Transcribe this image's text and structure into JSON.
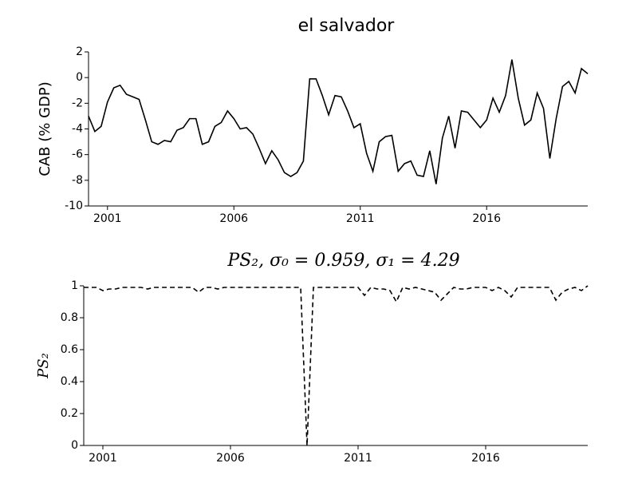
{
  "chart_data": [
    {
      "type": "line",
      "title": "el salvador",
      "ylabel": "CAB (% GDP)",
      "x": [
        2000.25,
        2000.5,
        2000.75,
        2001,
        2001.25,
        2001.5,
        2001.75,
        2002,
        2002.25,
        2002.5,
        2002.75,
        2003,
        2003.25,
        2003.5,
        2003.75,
        2004,
        2004.25,
        2004.5,
        2004.75,
        2005,
        2005.25,
        2005.5,
        2005.75,
        2006,
        2006.25,
        2006.5,
        2006.75,
        2007,
        2007.25,
        2007.5,
        2007.75,
        2008,
        2008.25,
        2008.5,
        2008.75,
        2009,
        2009.25,
        2009.5,
        2009.75,
        2010,
        2010.25,
        2010.5,
        2010.75,
        2011,
        2011.25,
        2011.5,
        2011.75,
        2012,
        2012.25,
        2012.5,
        2012.75,
        2013,
        2013.25,
        2013.5,
        2013.75,
        2014,
        2014.25,
        2014.5,
        2014.75,
        2015,
        2015.25,
        2015.5,
        2015.75,
        2016,
        2016.25,
        2016.5,
        2016.75,
        2017,
        2017.25,
        2017.5,
        2017.75,
        2018,
        2018.25,
        2018.5,
        2018.75,
        2019,
        2019.25,
        2019.5,
        2019.75,
        2020
      ],
      "values": [
        -3.0,
        -4.2,
        -3.8,
        -1.9,
        -0.8,
        -0.6,
        -1.3,
        -1.5,
        -1.7,
        -3.3,
        -5.0,
        -5.2,
        -4.9,
        -5.0,
        -4.1,
        -3.9,
        -3.2,
        -3.2,
        -5.2,
        -5.0,
        -3.8,
        -3.5,
        -2.6,
        -3.2,
        -4.0,
        -3.9,
        -4.4,
        -5.5,
        -6.7,
        -5.7,
        -6.4,
        -7.4,
        -7.7,
        -7.4,
        -6.5,
        -0.1,
        -0.1,
        -1.4,
        -2.9,
        -1.4,
        -1.5,
        -2.6,
        -3.9,
        -3.6,
        -5.9,
        -7.3,
        -5.0,
        -4.6,
        -4.5,
        -7.3,
        -6.7,
        -6.5,
        -7.6,
        -7.7,
        -5.7,
        -8.3,
        -4.7,
        -3.0,
        -5.5,
        -2.6,
        -2.7,
        -3.3,
        -3.9,
        -3.3,
        -1.6,
        -2.7,
        -1.4,
        1.4,
        -1.6,
        -3.7,
        -3.3,
        -1.2,
        -2.4,
        -6.3,
        -3.2,
        -0.7,
        -0.3,
        -1.2,
        0.7,
        0.3
      ],
      "color": "#000000",
      "linestyle": "solid",
      "xlim": [
        2000.25,
        2020.0
      ],
      "xticks": [
        2001,
        2006,
        2011,
        2016
      ],
      "ylim": [
        -10,
        2
      ],
      "yticks": [
        -10,
        -8,
        -6,
        -4,
        -2,
        0,
        2
      ]
    },
    {
      "type": "line",
      "title": "PS₂, σ₀ = 0.959, σ₁ = 4.29",
      "ylabel": "PS₂",
      "x": [
        2000.25,
        2000.5,
        2000.75,
        2001,
        2001.25,
        2001.5,
        2001.75,
        2002,
        2002.25,
        2002.5,
        2002.75,
        2003,
        2003.25,
        2003.5,
        2003.75,
        2004,
        2004.25,
        2004.5,
        2004.75,
        2005,
        2005.25,
        2005.5,
        2005.75,
        2006,
        2006.25,
        2006.5,
        2006.75,
        2007,
        2007.25,
        2007.5,
        2007.75,
        2008,
        2008.25,
        2008.5,
        2008.75,
        2009,
        2009.25,
        2009.5,
        2009.75,
        2010,
        2010.25,
        2010.5,
        2010.75,
        2011,
        2011.25,
        2011.5,
        2011.75,
        2012,
        2012.25,
        2012.5,
        2012.75,
        2013,
        2013.25,
        2013.5,
        2013.75,
        2014,
        2014.25,
        2014.5,
        2014.75,
        2015,
        2015.25,
        2015.5,
        2015.75,
        2016,
        2016.25,
        2016.5,
        2016.75,
        2017,
        2017.25,
        2017.5,
        2017.75,
        2018,
        2018.25,
        2018.5,
        2018.75,
        2019,
        2019.25,
        2019.5,
        2019.75,
        2020
      ],
      "values": [
        0.99,
        0.99,
        0.99,
        0.97,
        0.98,
        0.98,
        0.99,
        0.99,
        0.99,
        0.99,
        0.98,
        0.99,
        0.99,
        0.99,
        0.99,
        0.99,
        0.99,
        0.99,
        0.96,
        0.99,
        0.99,
        0.98,
        0.99,
        0.99,
        0.99,
        0.99,
        0.99,
        0.99,
        0.99,
        0.99,
        0.99,
        0.99,
        0.99,
        0.99,
        0.99,
        0.0,
        0.99,
        0.99,
        0.99,
        0.99,
        0.99,
        0.99,
        0.99,
        0.99,
        0.94,
        0.99,
        0.98,
        0.98,
        0.97,
        0.9,
        0.99,
        0.98,
        0.99,
        0.98,
        0.97,
        0.96,
        0.91,
        0.95,
        0.99,
        0.98,
        0.98,
        0.99,
        0.99,
        0.99,
        0.97,
        0.99,
        0.97,
        0.93,
        0.99,
        0.99,
        0.99,
        0.99,
        0.99,
        0.99,
        0.91,
        0.96,
        0.98,
        0.99,
        0.97,
        1.0
      ],
      "color": "#000000",
      "linestyle": "dashed",
      "xlim": [
        2000.25,
        2020.0
      ],
      "xticks": [
        2001,
        2006,
        2011,
        2016
      ],
      "ylim": [
        0,
        1
      ],
      "yticks": [
        0,
        0.2,
        0.4,
        0.6,
        0.8,
        1
      ]
    }
  ]
}
